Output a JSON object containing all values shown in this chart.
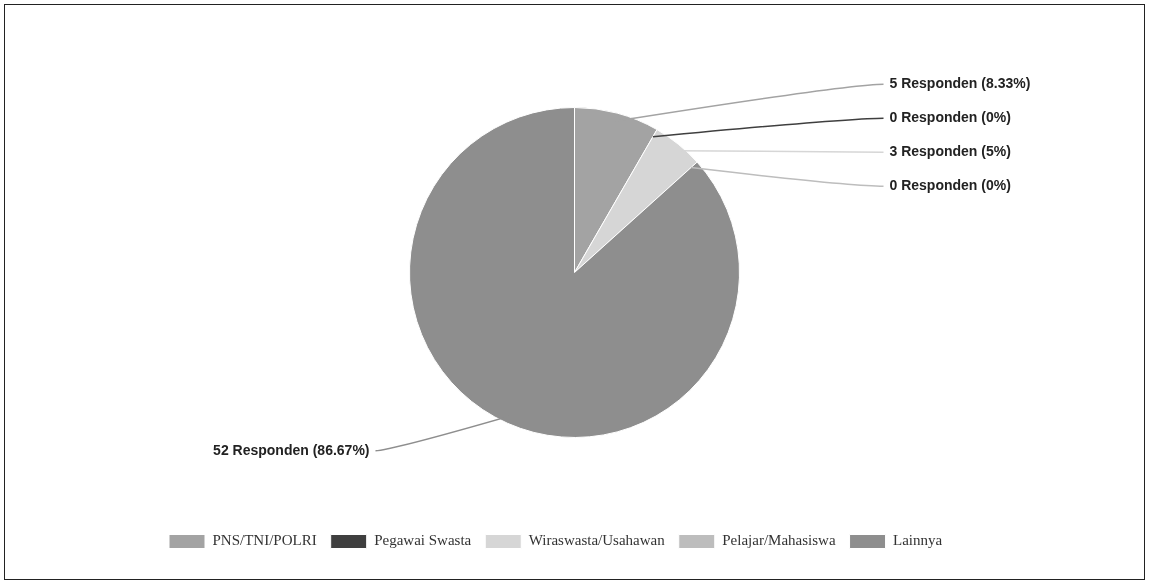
{
  "chart_data": {
    "type": "pie",
    "categories": [
      "PNS/TNI/POLRI",
      "Pegawai Swasta",
      "Wiraswasta/Usahawan",
      "Pelajar/Mahasiswa",
      "Lainnya"
    ],
    "values": [
      5,
      0,
      3,
      0,
      52
    ],
    "colors": [
      "#a3a3a3",
      "#3f3f3f",
      "#d6d6d6",
      "#bdbdbd",
      "#8e8e8e"
    ],
    "value_labels": [
      "5 Responden (8.33%)",
      "0 Responden (0%)",
      "3 Responden (5%)",
      "0 Responden (0%)",
      "52 Responden (86.67%)"
    ],
    "legend": "bottom left"
  }
}
